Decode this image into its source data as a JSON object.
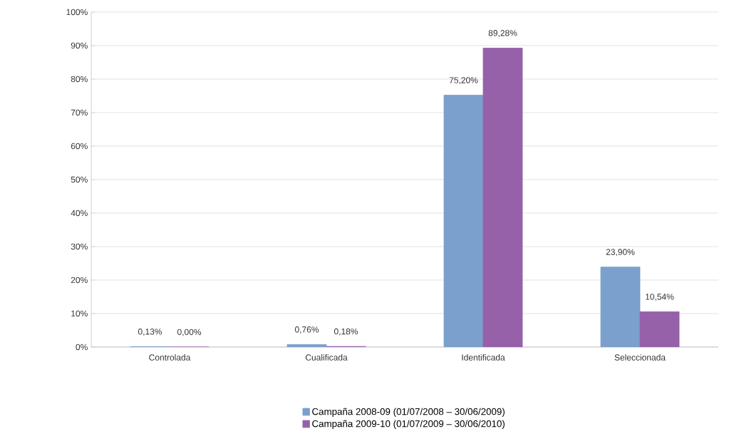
{
  "chart_data": {
    "type": "bar",
    "categories": [
      "Controlada",
      "Cualificada",
      "Identificada",
      "Seleccionada"
    ],
    "series": [
      {
        "name": "Campaña 2008-09 (01/07/2008 – 30/06/2009)",
        "color": "#7ba0cd",
        "values": [
          0.13,
          0.76,
          75.2,
          23.9
        ],
        "value_labels": [
          "0,13%",
          "0,76%",
          "75,20%",
          "23,90%"
        ]
      },
      {
        "name": "Campaña 2009-10 (01/07/2009 – 30/06/2010)",
        "color": "#9661a9",
        "values": [
          0.0,
          0.18,
          89.28,
          10.54
        ],
        "value_labels": [
          "0,00%",
          "0,18%",
          "89,28%",
          "10,54%"
        ]
      }
    ],
    "ylim": [
      0,
      100
    ],
    "yticks": [
      {
        "value": 0,
        "label": "0%"
      },
      {
        "value": 10,
        "label": "10%"
      },
      {
        "value": 20,
        "label": "20%"
      },
      {
        "value": 30,
        "label": "30%"
      },
      {
        "value": 40,
        "label": "40%"
      },
      {
        "value": 50,
        "label": "50%"
      },
      {
        "value": 60,
        "label": "60%"
      },
      {
        "value": 70,
        "label": "70%"
      },
      {
        "value": 80,
        "label": "80%"
      },
      {
        "value": 90,
        "label": "90%"
      },
      {
        "value": 100,
        "label": "100%"
      }
    ],
    "grid": "y",
    "legend": "bottom"
  }
}
